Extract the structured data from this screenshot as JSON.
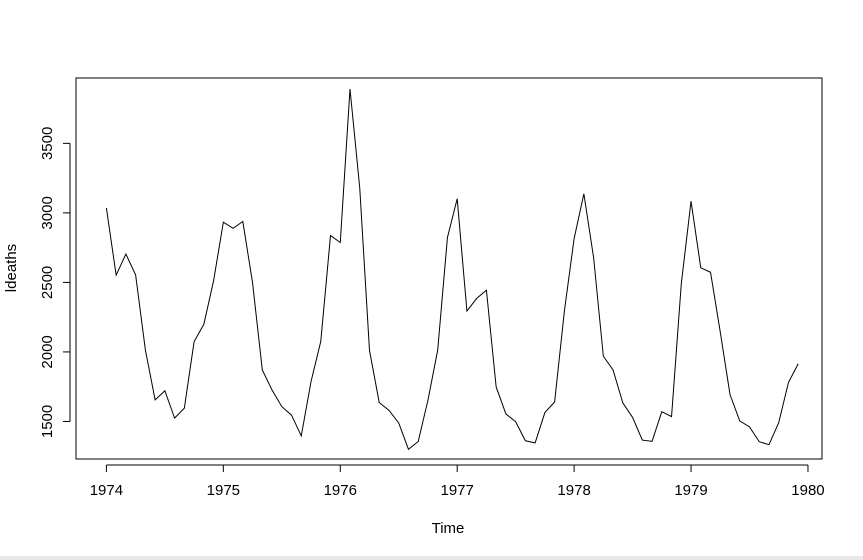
{
  "chart_data": {
    "type": "line",
    "title": "",
    "xlabel": "Time",
    "ylabel": "ldeaths",
    "xlim": [
      1973.74,
      1980.12
    ],
    "ylim": [
      1230,
      3970
    ],
    "x_ticks": [
      1974,
      1975,
      1976,
      1977,
      1978,
      1979,
      1980
    ],
    "x_tick_labels": [
      "1974",
      "1975",
      "1976",
      "1977",
      "1978",
      "1979",
      "1980"
    ],
    "y_ticks": [
      1500,
      2000,
      2500,
      3000,
      3500
    ],
    "y_tick_labels": [
      "1500",
      "2000",
      "2500",
      "3000",
      "3500"
    ],
    "grid": false,
    "legend": "none",
    "series": [
      {
        "start": 1974,
        "frequency": 12,
        "color": "#000000",
        "values": [
          3035,
          2552,
          2704,
          2554,
          2014,
          1655,
          1721,
          1524,
          1596,
          2074,
          2199,
          2512,
          2933,
          2889,
          2938,
          2497,
          1870,
          1726,
          1607,
          1545,
          1396,
          1787,
          2076,
          2837,
          2787,
          3891,
          3179,
          2011,
          1636,
          1580,
          1489,
          1300,
          1356,
          1653,
          2013,
          2823,
          3102,
          2294,
          2385,
          2444,
          1748,
          1554,
          1498,
          1361,
          1346,
          1564,
          1640,
          2293,
          2815,
          3137,
          2679,
          1969,
          1870,
          1633,
          1529,
          1366,
          1357,
          1570,
          1535,
          2491,
          3084,
          2605,
          2573,
          2143,
          1693,
          1504,
          1461,
          1354,
          1333,
          1492,
          1781,
          1915
        ]
      }
    ]
  }
}
